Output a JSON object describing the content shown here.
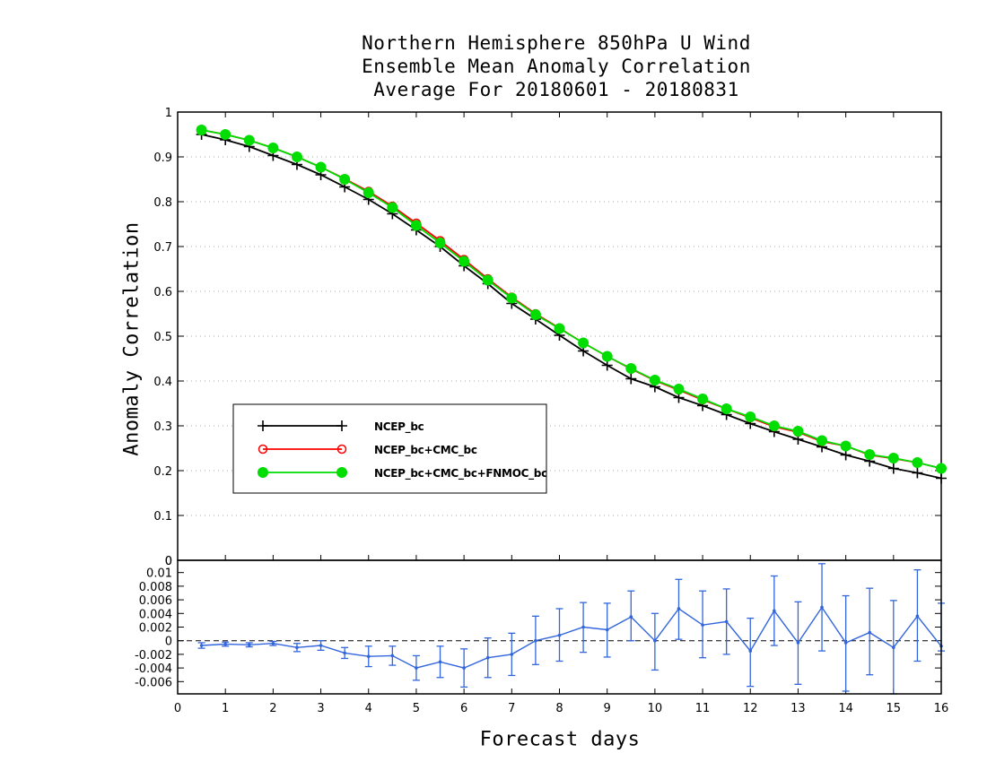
{
  "title_lines": [
    "Northern Hemisphere 850hPa U Wind",
    "Ensemble Mean Anomaly Correlation",
    "Average For 20180601 - 20180831"
  ],
  "chart_data": [
    {
      "type": "line",
      "panel": "main",
      "ylabel": "Anomaly Correlation",
      "xlabel": "",
      "xlim": [
        0,
        16
      ],
      "ylim": [
        0,
        1
      ],
      "yticks": [
        "0",
        "0.1",
        "0.2",
        "0.3",
        "0.4",
        "0.5",
        "0.6",
        "0.7",
        "0.8",
        "0.9",
        "1"
      ],
      "grid": "horizontal dotted",
      "legend_position": "lower-left",
      "x": [
        0.5,
        1.0,
        1.5,
        2.0,
        2.5,
        3.0,
        3.5,
        4.0,
        4.5,
        5.0,
        5.5,
        6.0,
        6.5,
        7.0,
        7.5,
        8.0,
        8.5,
        9.0,
        9.5,
        10.0,
        10.5,
        11.0,
        11.5,
        12.0,
        12.5,
        13.0,
        13.5,
        14.0,
        14.5,
        15.0,
        15.5,
        16.0
      ],
      "series": [
        {
          "name": "NCEP_bc",
          "color": "#000000",
          "marker": "plus",
          "values": [
            0.95,
            0.938,
            0.923,
            0.903,
            0.883,
            0.86,
            0.833,
            0.805,
            0.773,
            0.737,
            0.7,
            0.657,
            0.617,
            0.573,
            0.538,
            0.502,
            0.467,
            0.435,
            0.405,
            0.387,
            0.363,
            0.345,
            0.325,
            0.305,
            0.287,
            0.27,
            0.253,
            0.235,
            0.221,
            0.205,
            0.195,
            0.183
          ]
        },
        {
          "name": "NCEP_bc+CMC_bc",
          "color": "#ff0000",
          "marker": "open-circle",
          "values": [
            0.96,
            0.95,
            0.937,
            0.92,
            0.9,
            0.877,
            0.851,
            0.823,
            0.79,
            0.752,
            0.713,
            0.671,
            0.628,
            0.587,
            0.55,
            0.518,
            0.485,
            0.455,
            0.427,
            0.401,
            0.38,
            0.358,
            0.338,
            0.318,
            0.298,
            0.286,
            0.265,
            0.255,
            0.235,
            0.227,
            0.218,
            0.205
          ]
        },
        {
          "name": "NCEP_bc+CMC_bc+FNMOC_bc",
          "color": "#00dd00",
          "marker": "filled-circle",
          "values": [
            0.96,
            0.95,
            0.937,
            0.92,
            0.9,
            0.877,
            0.85,
            0.82,
            0.787,
            0.747,
            0.708,
            0.667,
            0.625,
            0.585,
            0.548,
            0.517,
            0.485,
            0.455,
            0.428,
            0.402,
            0.382,
            0.36,
            0.338,
            0.32,
            0.3,
            0.288,
            0.267,
            0.255,
            0.236,
            0.228,
            0.218,
            0.205
          ]
        }
      ]
    },
    {
      "type": "line",
      "panel": "difference",
      "xlabel": "Forecast days",
      "ylabel": "",
      "xlim": [
        0,
        16
      ],
      "ylim": [
        -0.0078,
        0.0118
      ],
      "xticks": [
        "0",
        "1",
        "2",
        "3",
        "4",
        "5",
        "6",
        "7",
        "8",
        "9",
        "10",
        "11",
        "12",
        "13",
        "14",
        "15",
        "16"
      ],
      "yticks": [
        "-0.006",
        "-0.004",
        "-0.002",
        "0",
        "0.002",
        "0.004",
        "0.006",
        "0.008",
        "0.01"
      ],
      "top_tick": "0",
      "color": "#3366dd",
      "x": [
        0.5,
        1.0,
        1.5,
        2.0,
        2.5,
        3.0,
        3.5,
        4.0,
        4.5,
        5.0,
        5.5,
        6.0,
        6.5,
        7.0,
        7.5,
        8.0,
        8.5,
        9.0,
        9.5,
        10.0,
        10.5,
        11.0,
        11.5,
        12.0,
        12.5,
        13.0,
        13.5,
        14.0,
        14.5,
        15.0,
        15.5,
        16.0
      ],
      "values": [
        -0.0007,
        -0.0005,
        -0.0006,
        -0.0004,
        -0.001,
        -0.0007,
        -0.0018,
        -0.0023,
        -0.0022,
        -0.004,
        -0.0031,
        -0.004,
        -0.0025,
        -0.002,
        0.0,
        0.0008,
        0.002,
        0.0016,
        0.0035,
        0.0,
        0.0047,
        0.0023,
        0.0028,
        -0.0015,
        0.0044,
        -0.0003,
        0.0049,
        -0.0003,
        0.0012,
        -0.001,
        0.0036,
        -0.0008
      ],
      "err_low": [
        -0.0011,
        -0.0008,
        -0.0009,
        -0.0007,
        -0.0016,
        -0.0014,
        -0.0026,
        -0.0038,
        -0.0036,
        -0.0058,
        -0.0054,
        -0.0068,
        -0.0054,
        -0.0051,
        -0.0035,
        -0.003,
        -0.0017,
        -0.0024,
        0.0,
        -0.0043,
        0.0002,
        -0.0025,
        -0.002,
        -0.0067,
        -0.0007,
        -0.0064,
        -0.0015,
        -0.0074,
        -0.005,
        -0.0078,
        -0.003,
        -0.0015
      ],
      "err_high": [
        -0.0003,
        -0.0002,
        -0.0003,
        -0.0001,
        -0.0004,
        0.0,
        -0.001,
        -0.0008,
        -0.0008,
        -0.0022,
        -0.0008,
        -0.0012,
        0.0004,
        0.0011,
        0.0036,
        0.0047,
        0.0056,
        0.0055,
        0.0073,
        0.004,
        0.009,
        0.0073,
        0.0076,
        0.0033,
        0.0095,
        0.0057,
        0.0113,
        0.0066,
        0.0077,
        0.0059,
        0.0104,
        0.0055
      ]
    }
  ]
}
